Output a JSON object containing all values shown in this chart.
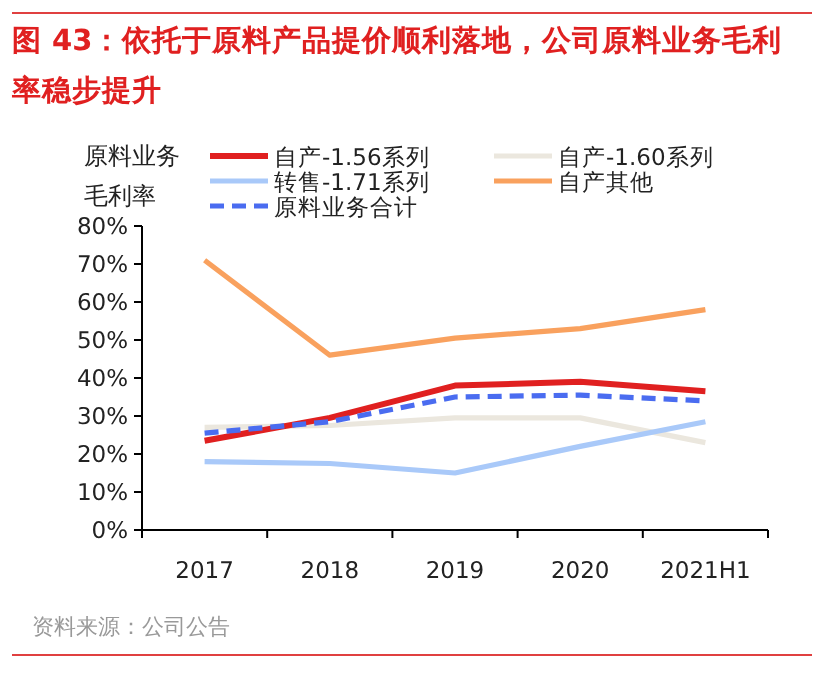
{
  "chart_data": {
    "type": "line",
    "title": "图 43：依托于原料产品提价顺利落地，公司原料业务毛利率稳步提升",
    "ylabel": "原料业务毛利率",
    "categories": [
      "2017",
      "2018",
      "2019",
      "2020",
      "2021H1"
    ],
    "series": [
      {
        "name": "自产-1.56系列",
        "color": "#e02020",
        "values": [
          23.5,
          29.5,
          38,
          39,
          36.5
        ]
      },
      {
        "name": "自产-1.60系列",
        "color": "#ebe7de",
        "values": [
          27,
          27.5,
          29.5,
          29.5,
          23
        ]
      },
      {
        "name": "转售-1.71系列",
        "color": "#a9c9f9",
        "values": [
          18,
          17.5,
          15,
          22,
          28.5
        ]
      },
      {
        "name": "自产其他",
        "color": "#f9a15e",
        "values": [
          71,
          46,
          50.5,
          53,
          58
        ]
      },
      {
        "name": "原料业务合计",
        "color": "#4a6cf0",
        "values": [
          25.5,
          28.5,
          35,
          35.5,
          34
        ],
        "line_style": "dashed"
      }
    ],
    "ylim": [
      0,
      80
    ],
    "yticks": [
      {
        "value": 0,
        "label": "0%"
      },
      {
        "value": 10,
        "label": "10%"
      },
      {
        "value": 20,
        "label": "20%"
      },
      {
        "value": 30,
        "label": "30%"
      },
      {
        "value": 40,
        "label": "40%"
      },
      {
        "value": 50,
        "label": "50%"
      },
      {
        "value": 60,
        "label": "60%"
      },
      {
        "value": 70,
        "label": "70%"
      },
      {
        "value": 80,
        "label": "80%"
      }
    ],
    "grid": false,
    "legend": "top",
    "marker": "none",
    "annotations": [
      "资料来源：公司公告"
    ]
  }
}
